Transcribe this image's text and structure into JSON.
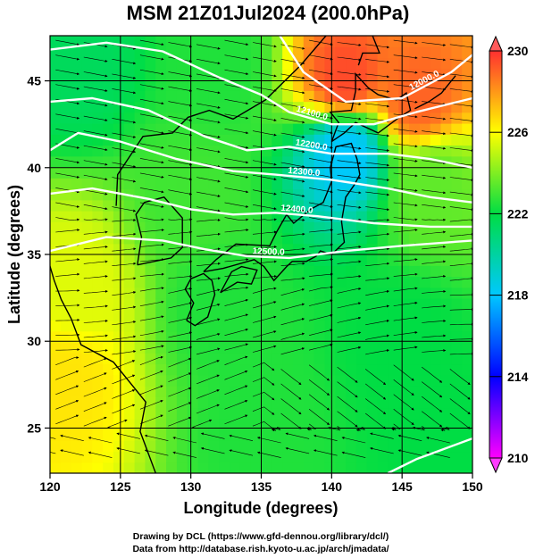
{
  "chart_data": {
    "type": "heatmap",
    "title": "MSM 21Z01Jul2024 (200.0hPa)",
    "xlabel": "Longitude (degrees)",
    "ylabel": "Latitude  (degrees)",
    "xlim": [
      120,
      150
    ],
    "ylim": [
      22.4,
      47.6
    ],
    "xticks": [
      120,
      125,
      130,
      135,
      140,
      145,
      150
    ],
    "yticks": [
      25,
      30,
      35,
      40,
      45
    ],
    "xtick_labels": [
      "120",
      "125",
      "130",
      "135",
      "140",
      "145",
      "150"
    ],
    "ytick_labels": [
      "25",
      "30",
      "35",
      "40",
      "45"
    ],
    "grid": true,
    "colorbar": {
      "range": [
        210,
        230
      ],
      "ticks": [
        210,
        214,
        218,
        222,
        226,
        230
      ],
      "tick_labels": [
        "210",
        "214",
        "218",
        "222",
        "226",
        "230"
      ],
      "colors": [
        "#ff00ff",
        "#0000ff",
        "#00c8ff",
        "#00dd44",
        "#ffff00",
        "#ff3030"
      ]
    },
    "temperature_field": [
      {
        "lon": 122,
        "lat": 46,
        "value": 221.5
      },
      {
        "lon": 132,
        "lat": 46,
        "value": 222.5
      },
      {
        "lon": 141,
        "lat": 45,
        "value": 229.5
      },
      {
        "lon": 146,
        "lat": 44,
        "value": 229
      },
      {
        "lon": 141,
        "lat": 41,
        "value": 218
      },
      {
        "lon": 147,
        "lat": 39,
        "value": 223.5
      },
      {
        "lon": 130,
        "lat": 38,
        "value": 223
      },
      {
        "lon": 122,
        "lat": 33,
        "value": 225.5
      },
      {
        "lon": 121,
        "lat": 28,
        "value": 226.5
      },
      {
        "lon": 132,
        "lat": 32,
        "value": 222.5
      },
      {
        "lon": 145,
        "lat": 30,
        "value": 222
      },
      {
        "lon": 135,
        "lat": 25,
        "value": 222.5
      },
      {
        "lon": 148,
        "lat": 24,
        "value": 222
      }
    ],
    "contours": [
      {
        "label": "12000.0",
        "points": [
          [
            136,
            48
          ],
          [
            138,
            45.5
          ],
          [
            141,
            43.8
          ],
          [
            145,
            44
          ],
          [
            148.5,
            45.5
          ],
          [
            150,
            46.5
          ]
        ]
      },
      {
        "label": "12100.0",
        "points": [
          [
            120,
            46.8
          ],
          [
            124,
            47.2
          ],
          [
            128,
            46.7
          ],
          [
            132,
            45.2
          ],
          [
            135,
            44.2
          ],
          [
            137,
            43.2
          ],
          [
            140,
            42.5
          ],
          [
            143,
            42.5
          ],
          [
            146,
            43.2
          ],
          [
            150,
            44
          ]
        ]
      },
      {
        "label": "12200.0",
        "points": [
          [
            120,
            43.8
          ],
          [
            123,
            44
          ],
          [
            127,
            43.3
          ],
          [
            131,
            41.8
          ],
          [
            134,
            41
          ],
          [
            137,
            41.2
          ],
          [
            140,
            40.8
          ],
          [
            144,
            40.8
          ],
          [
            147,
            40.5
          ],
          [
            150,
            40
          ]
        ]
      },
      {
        "label": "12300.0",
        "points": [
          [
            120,
            41
          ],
          [
            122,
            42
          ],
          [
            125,
            41.5
          ],
          [
            129,
            40.5
          ],
          [
            133,
            39.8
          ],
          [
            136,
            39.6
          ],
          [
            140,
            39.3
          ],
          [
            144,
            38.8
          ],
          [
            147,
            38.3
          ],
          [
            150,
            38
          ]
        ]
      },
      {
        "label": "12400.0",
        "points": [
          [
            120,
            38.5
          ],
          [
            123,
            38.8
          ],
          [
            127,
            38.2
          ],
          [
            130,
            37.6
          ],
          [
            133,
            37.3
          ],
          [
            136,
            37.4
          ],
          [
            139,
            37.2
          ],
          [
            143,
            36.8
          ],
          [
            147,
            36.6
          ],
          [
            150,
            36.6
          ]
        ]
      },
      {
        "label": "12500.0",
        "points": [
          [
            120,
            35.2
          ],
          [
            124,
            36
          ],
          [
            128,
            35.8
          ],
          [
            131,
            35.3
          ],
          [
            134,
            34.9
          ],
          [
            137,
            34.8
          ],
          [
            141,
            35.2
          ],
          [
            145,
            35.5
          ],
          [
            150,
            35.8
          ]
        ]
      },
      {
        "label": "",
        "points": [
          [
            144,
            22.4
          ],
          [
            146,
            23.2
          ],
          [
            148,
            23.8
          ],
          [
            150,
            24.4
          ]
        ]
      }
    ],
    "wind_field_note": "streamlines with arrowheads"
  },
  "credits": {
    "line1": "Drawing by DCL (https://www.gfd-dennou.org/library/dcl/)",
    "line2": "Data from http://database.rish.kyoto-u.ac.jp/arch/jmadata/"
  }
}
